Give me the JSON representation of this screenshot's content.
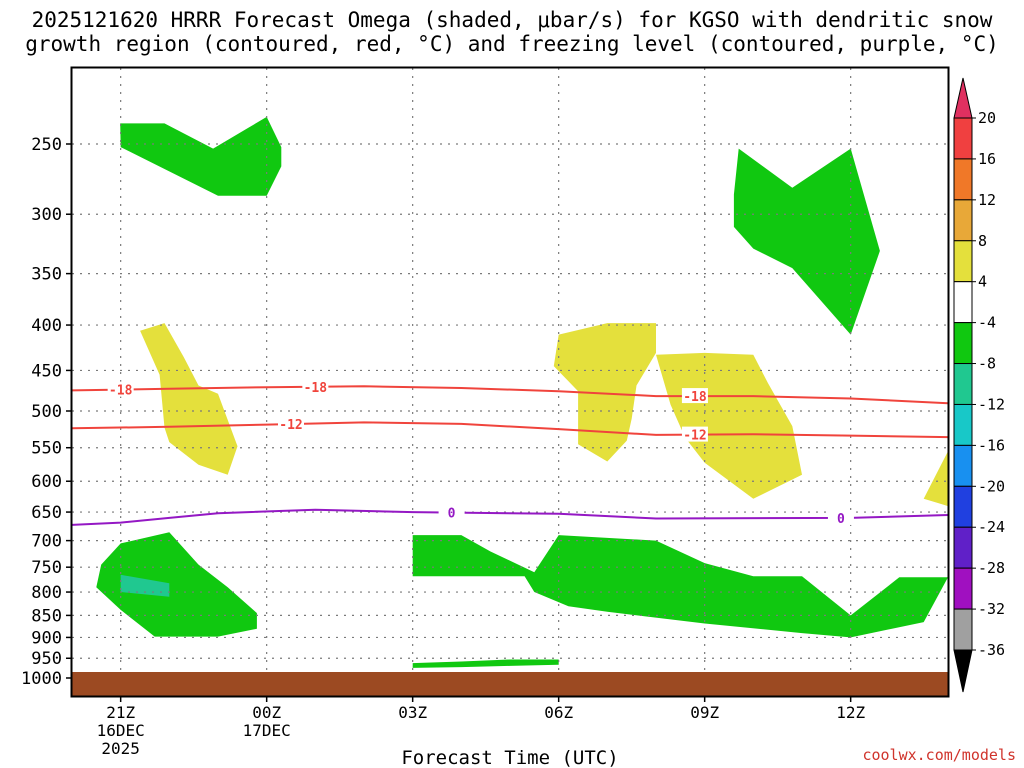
{
  "title_line1": "2025121620 HRRR Forecast Omega (shaded, μbar/s) for KGSO with dendritic snow",
  "title_line2": "growth region (contoured, red, °C) and freezing level (contoured, purple, °C)",
  "credit": "coolwx.com/models",
  "chart_data": {
    "type": "time-height cross section",
    "title": "2025121620 HRRR Forecast Omega (shaded, μbar/s) for KGSO with dendritic snow growth region (contoured, red, °C) and freezing level (contoured, purple, °C)",
    "xlabel": "Forecast Time (UTC)",
    "ylabel": "",
    "x_unit": "forecast hour from 20Z 16 Dec 2025",
    "y_unit": "hPa",
    "y_scale": "log-pressure (inverted)",
    "xlim": [
      0,
      18
    ],
    "ylim": [
      1000,
      200
    ],
    "grid": true,
    "x_ticks": [
      {
        "x": 1,
        "label": "21Z",
        "sub1": "16DEC",
        "sub2": "2025"
      },
      {
        "x": 4,
        "label": "00Z",
        "sub1": "17DEC",
        "sub2": ""
      },
      {
        "x": 7,
        "label": "03Z",
        "sub1": "",
        "sub2": ""
      },
      {
        "x": 10,
        "label": "06Z",
        "sub1": "",
        "sub2": ""
      },
      {
        "x": 13,
        "label": "09Z",
        "sub1": "",
        "sub2": ""
      },
      {
        "x": 16,
        "label": "12Z",
        "sub1": "",
        "sub2": ""
      }
    ],
    "y_ticks": [
      250,
      300,
      350,
      400,
      450,
      500,
      550,
      600,
      650,
      700,
      750,
      800,
      850,
      900,
      950,
      1000
    ],
    "colorbar": {
      "unit": "μbar/s",
      "labels": [
        20,
        16,
        12,
        8,
        4,
        -4,
        -8,
        -12,
        -16,
        -20,
        -24,
        -28,
        -32,
        -36
      ],
      "bands": [
        {
          "color": "#e03060",
          "range": "> 20"
        },
        {
          "color": "#f04040",
          "range": "16 to 20"
        },
        {
          "color": "#f07828",
          "range": "12 to 16"
        },
        {
          "color": "#e8a838",
          "range": "8 to 12"
        },
        {
          "color": "#e4e03c",
          "range": "4 to 8"
        },
        {
          "color": "#ffffff",
          "range": "-4 to 4"
        },
        {
          "color": "#10c810",
          "range": "-8 to -4"
        },
        {
          "color": "#20c890",
          "range": "-12 to -8"
        },
        {
          "color": "#18c8c8",
          "range": "-16 to -12"
        },
        {
          "color": "#1890f0",
          "range": "-20 to -16"
        },
        {
          "color": "#2040e0",
          "range": "-24 to -20"
        },
        {
          "color": "#6020c8",
          "range": "-28 to -24"
        },
        {
          "color": "#a010c0",
          "range": "-32 to -28"
        },
        {
          "color": "#a0a0a0",
          "range": "-36 to -32"
        },
        {
          "color": "#000000",
          "range": "< -36"
        }
      ]
    },
    "shaded_regions": [
      {
        "fill": "#10c810",
        "value": "-4 to -8",
        "points": [
          [
            0.99,
            237
          ],
          [
            1.9,
            237
          ],
          [
            2.9,
            253
          ],
          [
            4.0,
            233
          ],
          [
            4.3,
            252
          ],
          [
            4.3,
            265
          ],
          [
            4.0,
            286
          ],
          [
            3.0,
            286
          ],
          [
            1.0,
            252
          ]
        ]
      },
      {
        "fill": "#10c810",
        "value": "-4 to -8",
        "points": [
          [
            13.7,
            253
          ],
          [
            14.8,
            280
          ],
          [
            16.0,
            253
          ],
          [
            16.6,
            330
          ],
          [
            16.0,
            410
          ],
          [
            14.8,
            345
          ],
          [
            14.0,
            328
          ],
          [
            13.6,
            310
          ],
          [
            13.6,
            285
          ]
        ]
      },
      {
        "fill": "#10c810",
        "value": "-4 to -8",
        "points": [
          [
            1.0,
            705
          ],
          [
            2.0,
            685
          ],
          [
            2.6,
            745
          ],
          [
            3.2,
            790
          ],
          [
            3.8,
            845
          ],
          [
            3.8,
            880
          ],
          [
            3.0,
            898
          ],
          [
            1.7,
            898
          ],
          [
            1.0,
            838
          ],
          [
            0.5,
            790
          ],
          [
            0.6,
            745
          ]
        ]
      },
      {
        "fill": "#20c890",
        "value": "-8 to -12",
        "points": [
          [
            1.0,
            765
          ],
          [
            2.0,
            782
          ],
          [
            2.0,
            810
          ],
          [
            1.0,
            800
          ]
        ]
      },
      {
        "fill": "#10c810",
        "value": "-4 to -8",
        "points": [
          [
            7.0,
            690
          ],
          [
            8.0,
            690
          ],
          [
            8.6,
            720
          ],
          [
            9.5,
            760
          ],
          [
            10.0,
            690
          ],
          [
            12.0,
            700
          ],
          [
            13.0,
            742
          ],
          [
            14.0,
            768
          ],
          [
            15.0,
            768
          ],
          [
            16.0,
            850
          ],
          [
            17.0,
            770
          ],
          [
            18.0,
            770
          ],
          [
            17.5,
            865
          ],
          [
            16.0,
            900
          ],
          [
            15.0,
            890
          ],
          [
            13.0,
            868
          ],
          [
            11.0,
            842
          ],
          [
            10.2,
            830
          ],
          [
            9.5,
            800
          ],
          [
            9.3,
            768
          ],
          [
            7.0,
            768
          ]
        ]
      },
      {
        "fill": "#10c810",
        "value": "-4 to -8",
        "points": [
          [
            7.0,
            962
          ],
          [
            8.0,
            958
          ],
          [
            9.0,
            953
          ],
          [
            10.0,
            953
          ],
          [
            10.0,
            966
          ],
          [
            9.0,
            969
          ],
          [
            8.0,
            972
          ],
          [
            7.0,
            974
          ]
        ]
      },
      {
        "fill": "#e4e03c",
        "value": "4 to 8",
        "points": [
          [
            1.4,
            406
          ],
          [
            1.9,
            398
          ],
          [
            2.3,
            435
          ],
          [
            2.6,
            468
          ],
          [
            3.0,
            478
          ],
          [
            3.4,
            548
          ],
          [
            3.2,
            590
          ],
          [
            2.6,
            575
          ],
          [
            2.0,
            542
          ],
          [
            1.9,
            522
          ],
          [
            1.8,
            455
          ]
        ]
      },
      {
        "fill": "#e4e03c",
        "value": "4 to 8",
        "points": [
          [
            10.0,
            410
          ],
          [
            11.0,
            398
          ],
          [
            12.0,
            398
          ],
          [
            12.0,
            430
          ],
          [
            11.6,
            468
          ],
          [
            11.5,
            510
          ],
          [
            11.4,
            540
          ],
          [
            11.0,
            570
          ],
          [
            10.4,
            545
          ],
          [
            10.4,
            475
          ],
          [
            9.9,
            445
          ]
        ]
      },
      {
        "fill": "#e4e03c",
        "value": "4 to 8",
        "points": [
          [
            12.0,
            432
          ],
          [
            13.0,
            430
          ],
          [
            14.0,
            432
          ],
          [
            14.3,
            465
          ],
          [
            14.8,
            520
          ],
          [
            15.0,
            590
          ],
          [
            14.0,
            628
          ],
          [
            13.0,
            572
          ],
          [
            12.6,
            536
          ],
          [
            12.3,
            492
          ]
        ]
      },
      {
        "fill": "#e4e03c",
        "value": "4 to 8",
        "points": [
          [
            18.0,
            555
          ],
          [
            17.5,
            628
          ],
          [
            17.8,
            635
          ],
          [
            18.0,
            640
          ]
        ]
      }
    ],
    "series": [
      {
        "name": "-18",
        "color": "#f0443c",
        "points": [
          [
            0,
            474
          ],
          [
            2,
            472
          ],
          [
            4,
            470
          ],
          [
            6,
            469
          ],
          [
            8,
            471
          ],
          [
            10,
            475
          ],
          [
            12,
            481
          ],
          [
            14,
            481
          ],
          [
            16,
            484
          ],
          [
            18,
            490
          ]
        ]
      },
      {
        "name": "-12",
        "color": "#f0443c",
        "points": [
          [
            0,
            523
          ],
          [
            2,
            521
          ],
          [
            4,
            518
          ],
          [
            6,
            515
          ],
          [
            8,
            517
          ],
          [
            10,
            524
          ],
          [
            12,
            532
          ],
          [
            14,
            531
          ],
          [
            16,
            533
          ],
          [
            18,
            535
          ]
        ]
      },
      {
        "name": "0",
        "color": "#9418c4",
        "points": [
          [
            0,
            672
          ],
          [
            1,
            668
          ],
          [
            2,
            660
          ],
          [
            3,
            652
          ],
          [
            5,
            646
          ],
          [
            7,
            650
          ],
          [
            10,
            653
          ],
          [
            12,
            661
          ],
          [
            16,
            660
          ],
          [
            18,
            655
          ]
        ]
      }
    ]
  }
}
